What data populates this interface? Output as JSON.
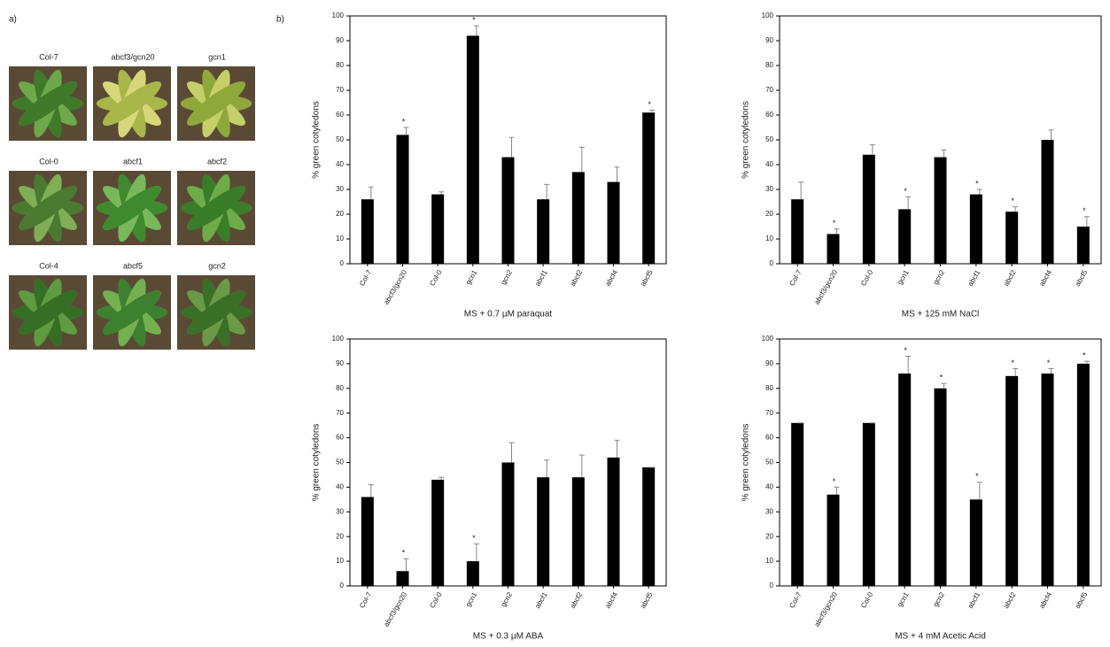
{
  "panel_a": {
    "label": "a)",
    "photos": [
      "Col-7",
      "abcf3/gcn20",
      "gcn1",
      "Col-0",
      "abcf1",
      "abcf2",
      "Col-4",
      "abcf5",
      "gcn2"
    ]
  },
  "panel_b": {
    "label": "b)"
  },
  "chart_data": [
    {
      "type": "bar",
      "xlabel": "MS + 0.7 µM paraquat",
      "ylabel": "% green cotyledons",
      "categories": [
        "Col-7",
        "abcf3/gcn20",
        "Col-0",
        "gcn1",
        "gcn2",
        "abcf1",
        "abcf2",
        "abcf4",
        "abcf5"
      ],
      "values": [
        26,
        52,
        28,
        92,
        43,
        26,
        37,
        33,
        61
      ],
      "errors": [
        5,
        3,
        1,
        4,
        8,
        6,
        10,
        6,
        1
      ],
      "annotations": [
        null,
        "*",
        null,
        "*",
        null,
        null,
        null,
        null,
        "*"
      ],
      "color": "#000000",
      "ylim": [
        0,
        100
      ],
      "yticks": [
        0,
        10,
        20,
        30,
        40,
        50,
        60,
        70,
        80,
        90,
        100
      ]
    },
    {
      "type": "bar",
      "xlabel": "MS + 125 mM NaCl",
      "ylabel": "% green cotyledons",
      "categories": [
        "Col-7",
        "abcf3/gcn20",
        "Col-0",
        "gcn1",
        "gcn2",
        "abcf1",
        "abcf2",
        "abcf4",
        "abcf5"
      ],
      "values": [
        26,
        12,
        44,
        22,
        43,
        28,
        21,
        50,
        15
      ],
      "errors": [
        7,
        2,
        4,
        5,
        3,
        2,
        2,
        4,
        4
      ],
      "annotations": [
        null,
        "*",
        null,
        "*",
        null,
        "*",
        "*",
        null,
        "*"
      ],
      "color": "#000000",
      "ylim": [
        0,
        100
      ],
      "yticks": [
        0,
        10,
        20,
        30,
        40,
        50,
        60,
        70,
        80,
        90,
        100
      ]
    },
    {
      "type": "bar",
      "xlabel": "MS + 0.3 µM ABA",
      "ylabel": "% green cotyledons",
      "categories": [
        "Col-7",
        "abcf3/gcn20",
        "Col-0",
        "gcn1",
        "gcn2",
        "abcf1",
        "abcf2",
        "abcf4",
        "abcf5"
      ],
      "values": [
        36,
        6,
        43,
        10,
        50,
        44,
        44,
        52,
        48
      ],
      "errors": [
        5,
        5,
        1,
        7,
        8,
        7,
        9,
        7,
        0
      ],
      "annotations": [
        null,
        "*",
        null,
        "*",
        null,
        null,
        null,
        null,
        null
      ],
      "color": "#000000",
      "ylim": [
        0,
        100
      ],
      "yticks": [
        0,
        10,
        20,
        30,
        40,
        50,
        60,
        70,
        80,
        90,
        100
      ]
    },
    {
      "type": "bar",
      "xlabel": "MS + 4 mM Acetic Acid",
      "ylabel": "% green cotyledons",
      "categories": [
        "Col-7",
        "abcf3/gcn20",
        "Col-0",
        "gcn1",
        "gcn2",
        "abcf1",
        "abcf2",
        "abcf4",
        "abcf5"
      ],
      "values": [
        66,
        37,
        66,
        86,
        80,
        35,
        85,
        86,
        90
      ],
      "errors": [
        0,
        3,
        0,
        7,
        2,
        7,
        3,
        2,
        1
      ],
      "annotations": [
        null,
        "*",
        null,
        "*",
        "*",
        "*",
        "*",
        "*",
        "*"
      ],
      "color": "#000000",
      "ylim": [
        0,
        100
      ],
      "yticks": [
        0,
        10,
        20,
        30,
        40,
        50,
        60,
        70,
        80,
        90,
        100
      ]
    }
  ]
}
